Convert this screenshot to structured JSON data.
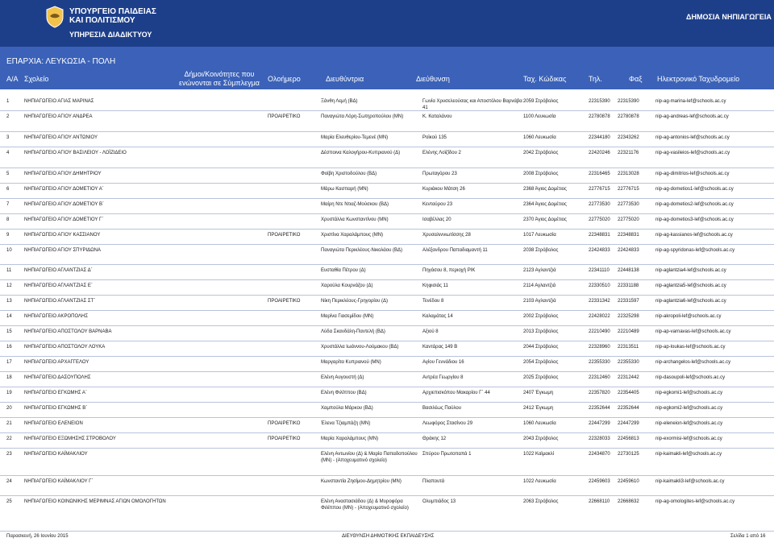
{
  "header": {
    "ministry_line1": "ΥΠΟΥΡΓΕΙΟ ΠΑΙΔΕΙΑΣ",
    "ministry_line2": "ΚΑΙ ΠΟΛΙΤΙΣΜΟΥ",
    "service": "ΥΠΗΡΕΣΙΑ ΔΙΑΔΙΚΤΥΟΥ",
    "title": "ΔΗΜΟΣΙΑ ΝΗΠΙΑΓΩΓΕΙΑ",
    "logo_icon": "coat-of-arms-icon"
  },
  "region": "ΕΠΑΡΧΙΑ: ΛΕΥΚΩΣΙΑ - ΠΟΛΗ",
  "columns": {
    "aa": "Α/Α",
    "school": "Σχολείο",
    "community": "Δήμοι/Κοινότητες που ενώνονται σε Σύμπλεγμα",
    "fullday": "Ολοήμερο",
    "director": "Διευθύντρια",
    "address": "Διεύθυνση",
    "postcode": "Ταχ. Κώδικας",
    "phone": "Τηλ.",
    "fax": "Φαξ",
    "email": "Ηλεκτρονικό Ταχυδρομείο"
  },
  "rows": [
    {
      "n": "1",
      "school": "ΝΗΠΙΑΓΩΓΕΙΟ ΑΓΙΑΣ ΜΑΡΙΝΑΣ",
      "opt": "",
      "dir": "Ξάνθη Λεμή (ΒΔ)",
      "addr": "Γωνία Χρυσελεούσας και Αποστόλου Βαρνάβα 41",
      "pc": "2059 Στρόβολος",
      "tel": "22315390",
      "fax": "22315390",
      "email": "nip-ag-marina-lef@schools.ac.cy"
    },
    {
      "n": "2",
      "school": "ΝΗΠΙΑΓΩΓΕΙΟ ΑΓΙΟΥ ΑΝΔΡΕΑ",
      "opt": "ΠΡΟΑΙΡΕΤΙΚΟ",
      "dir": "Παναγιώτα Λόρη-Σωτηροπούλου (ΜΝ)",
      "addr": "Κ. Καταλάνου",
      "pc": "1100 Λευκωσία",
      "tel": "22780878",
      "fax": "22780878",
      "email": "nip-ag-andreas-lef@schools.ac.cy"
    },
    {
      "n": "3",
      "school": "ΝΗΠΙΑΓΩΓΕΙΟ ΑΓΙΟΥ ΑΝΤΩΝΙΟΥ",
      "opt": "",
      "dir": "Μαρία Ελευθερίου-Τεμενέ (ΜΝ)",
      "addr": "Ροϊκού 135",
      "pc": "1060 Λευκωσία",
      "tel": "22344180",
      "fax": "22343262",
      "email": "nip-ag-antonios-lef@schools.ac.cy"
    },
    {
      "n": "4",
      "school": "ΝΗΠΙΑΓΩΓΕΙΟ ΑΓΙΟΥ ΒΑΣΙΛΕΙΟΥ - ΛΟΪΖΙΔΕΙΟ",
      "opt": "",
      "dir": "Δέσποινα Καλογήρου-Κυπριανού (Δ)",
      "addr": "Ελένης Λοϊζίδου 2",
      "pc": "2042 Στρόβολος",
      "tel": "22420246",
      "fax": "22321176",
      "email": "nip-ag-vasileios-lef@schools.ac.cy"
    },
    {
      "n": "5",
      "school": "ΝΗΠΙΑΓΩΓΕΙΟ ΑΓΙΟΥ ΔΗΜΗΤΡΙΟΥ",
      "opt": "",
      "dir": "Φοίβη Χριστοδούλου (ΒΔ)",
      "addr": "Πρωταγόρου 23",
      "pc": "2008 Στρόβολος",
      "tel": "22316465",
      "fax": "22313028",
      "email": "nip-ag-dimitrios-lef@schools.ac.cy"
    },
    {
      "n": "6",
      "school": "ΝΗΠΙΑΓΩΓΕΙΟ ΑΓΙΟΥ ΔΟΜΕΤΙΟΥ Α΄",
      "opt": "",
      "dir": "Μάρω Κασπαρή (ΜΝ)",
      "addr": "Κυριάκου Μάτση 26",
      "pc": "2368 Άγιος Δομέτιος",
      "tel": "22776715",
      "fax": "22776715",
      "email": "nip-ag-dometios1-lef@schools.ac.cy"
    },
    {
      "n": "7",
      "school": "ΝΗΠΙΑΓΩΓΕΙΟ ΑΓΙΟΥ ΔΟΜΕΤΙΟΥ Β΄",
      "opt": "",
      "dir": "Μαίρη Ντε Ντιαζ-Μούσκου (ΒΔ)",
      "addr": "Κενταύρου 23",
      "pc": "2364 Άγιος Δομέτιος",
      "tel": "22773530",
      "fax": "22773530",
      "email": "nip-ag-dometios2-lef@schools.ac.cy"
    },
    {
      "n": "8",
      "school": "ΝΗΠΙΑΓΩΓΕΙΟ ΑΓΙΟΥ ΔΟΜΕΤΙΟΥ Γ΄",
      "opt": "",
      "dir": "Χρυστάλλα Κωνσταντίνου (ΜΝ)",
      "addr": "Ισαβέλλας 20",
      "pc": "2370 Άγιος Δομέτιος",
      "tel": "22775020",
      "fax": "22775020",
      "email": "nip-ag-dometios3-lef@schools.ac.cy"
    },
    {
      "n": "9",
      "school": "ΝΗΠΙΑΓΩΓΕΙΟ ΑΓΙΟΥ ΚΑΣΣΙΑΝΟΥ",
      "opt": "ΠΡΟΑΙΡΕΤΙΚΟ",
      "dir": "Χριστίνα Χαραλάμπους (ΜΝ)",
      "addr": "Χρυσαλιννιωτίσσης 28",
      "pc": "1017 Λευκωσία",
      "tel": "22348831",
      "fax": "22348831",
      "email": "nip-ag-kassianos-lef@schools.ac.cy"
    },
    {
      "n": "10",
      "school": "ΝΗΠΙΑΓΩΓΕΙΟ ΑΓΙΟΥ ΣΠΥΡΙΔΩΝΑ",
      "opt": "",
      "dir": "Παναγιώτα Περικλέους-Νικολάου (ΒΔ)",
      "addr": "Αλέξανδρου Παπαδιαμαντή 11",
      "pc": "2038 Στρόβολος",
      "tel": "22424833",
      "fax": "22424833",
      "email": "nip-ag-spyridonas-lef@schools.ac.cy"
    },
    {
      "n": "11",
      "school": "ΝΗΠΙΑΓΩΓΕΙΟ ΑΓΛΑΝΤΖΙΑΣ Δ΄",
      "opt": "",
      "dir": "Ευσταθία Πέτρου (Δ)",
      "addr": "Πηγάσου 8, περιοχή ΡΙΚ",
      "pc": "2123 Αγλαντζιά",
      "tel": "22341110",
      "fax": "22448138",
      "email": "nip-aglantzia4-lef@schools.ac.cy"
    },
    {
      "n": "12",
      "school": "ΝΗΠΙΑΓΩΓΕΙΟ ΑΓΛΑΝΤΖΙΑΣ Ε΄",
      "opt": "",
      "dir": "Χαρούλα Κουρνάζου (Δ)",
      "addr": "Κηφισιάς 11",
      "pc": "2114 Αγλαντζιά",
      "tel": "22330510",
      "fax": "22331188",
      "email": "nip-aglantzia5-lef@schools.ac.cy"
    },
    {
      "n": "13",
      "school": "ΝΗΠΙΑΓΩΓΕΙΟ ΑΓΛΑΝΤΖΙΑΣ ΣΤ΄",
      "opt": "ΠΡΟΑΙΡΕΤΙΚΟ",
      "dir": "Νίκη Περικλέους-Γρηγορίου (Δ)",
      "addr": "Τενέδου 8",
      "pc": "2103 Αγλαντζιά",
      "tel": "22331342",
      "fax": "22331597",
      "email": "nip-aglantzia6-lef@schools.ac.cy"
    },
    {
      "n": "14",
      "school": "ΝΗΠΙΑΓΩΓΕΙΟ ΑΚΡΟΠΟΛΗΣ",
      "opt": "",
      "dir": "Μαρίνα Γιασεμίδου (ΜΝ)",
      "addr": "Καλαμάτας 14",
      "pc": "2002 Στρόβολος",
      "tel": "22428022",
      "fax": "22325298",
      "email": "nip-akropoli-lef@schools.ac.cy"
    },
    {
      "n": "15",
      "school": "ΝΗΠΙΑΓΩΓΕΙΟ ΑΠΟΣΤΟΛΟΥ ΒΑΡΝΑΒΑ",
      "opt": "",
      "dir": "Λύδα Σκανδάλη-Παντελή (ΒΔ)",
      "addr": "Αξιού 8",
      "pc": "2013 Στρόβολος",
      "tel": "22210490",
      "fax": "22210489",
      "email": "nip-ap-varnavas-lef@schools.ac.cy"
    },
    {
      "n": "16",
      "school": "ΝΗΠΙΑΓΩΓΕΙΟ ΑΠΟΣΤΟΛΟΥ ΛΟΥΚΑ",
      "opt": "",
      "dir": "Χρυστάλλα Ιωάννου-Λούμακου (ΒΔ)",
      "addr": "Καντάρας 149 Β",
      "pc": "2044 Στρόβολος",
      "tel": "22328960",
      "fax": "22313511",
      "email": "nip-ap-loukas-lef@schools.ac.cy"
    },
    {
      "n": "17",
      "school": "ΝΗΠΙΑΓΩΓΕΙΟ ΑΡΧΑΓΓΕΛΟΥ",
      "opt": "",
      "dir": "Μαργαρίτα Κυπριανού (ΜΝ)",
      "addr": "Αγίου Γεννάδιου 16",
      "pc": "2054 Στρόβολος",
      "tel": "22355330",
      "fax": "22355330",
      "email": "nip-archangelos-lef@schools.ac.cy"
    },
    {
      "n": "18",
      "school": "ΝΗΠΙΑΓΩΓΕΙΟ ΔΑΣΟΥΠΟΛΗΣ",
      "opt": "",
      "dir": "Ελένη Αυγουστή (Δ)",
      "addr": "Αντρέα Γεωργίου 8",
      "pc": "2025 Στρόβολος",
      "tel": "22312460",
      "fax": "22312442",
      "email": "nip-dasoupoli-lef@schools.ac.cy"
    },
    {
      "n": "19",
      "school": "ΝΗΠΙΑΓΩΓΕΙΟ ΕΓΚΩΜΗΣ Α΄",
      "opt": "",
      "dir": "Ελένη Φιλίππου (ΒΔ)",
      "addr": "Αρχιεπισκόπου Μακαρίου Γ΄ 44",
      "pc": "2407 Έγκωμη",
      "tel": "22357820",
      "fax": "22354405",
      "email": "nip-egkomi1-lef@schools.ac.cy"
    },
    {
      "n": "20",
      "school": "ΝΗΠΙΑΓΩΓΕΙΟ ΕΓΚΩΜΗΣ Β΄",
      "opt": "",
      "dir": "Χαμπούλα Μάρκου (ΒΔ)",
      "addr": "Βασιλέως Παύλου",
      "pc": "2412 Έγκωμη",
      "tel": "22352644",
      "fax": "22352644",
      "email": "nip-egkomi2-lef@schools.ac.cy"
    },
    {
      "n": "21",
      "school": "ΝΗΠΙΑΓΩΓΕΙΟ ΕΛΕΝΕΙΟΝ",
      "opt": "ΠΡΟΑΙΡΕΤΙΚΟ",
      "dir": "Έλενα Τζιαμπάζη (ΜΝ)",
      "addr": "Λεωφόρος Στασίνου 29",
      "pc": "1060 Λευκωσία",
      "tel": "22447299",
      "fax": "22447299",
      "email": "nip-eleneion-lef@schools.ac.cy"
    },
    {
      "n": "22",
      "school": "ΝΗΠΙΑΓΩΓΕΙΟ ΕΞΩΜΗΣΗΣ ΣΤΡΟΒΟΛΟΥ",
      "opt": "ΠΡΟΑΙΡΕΤΙΚΟ",
      "dir": "Μαρία Χαραλάμπους (ΜΝ)",
      "addr": "Θράκης 12",
      "pc": "2043 Στρόβολος",
      "tel": "22328033",
      "fax": "22456813",
      "email": "nip-exormisi-lef@schools.ac.cy"
    },
    {
      "n": "23",
      "school": "ΝΗΠΙΑΓΩΓΕΙΟ ΚΑΪΜΑΚΛΙΟΥ",
      "opt": "",
      "dir": "Ελένη Αντωνίου (Δ) & Μαρία Παπαδοπούλου (ΜΝ) - (Αποχευματινό σχολείο)",
      "addr": "Σπύρου Πρωτοπαπά 1",
      "pc": "1022 Καϊμακλί",
      "tel": "22434870",
      "fax": "22730125",
      "email": "nip-kaimakli-lef@schools.ac.cy"
    },
    {
      "n": "24",
      "school": "ΝΗΠΙΑΓΩΓΕΙΟ ΚΑΪΜΑΚΛΙΟΥ Γ΄",
      "opt": "",
      "dir": "Κωνσταντία Ζησίμου-Δημητρίου (ΜΝ)",
      "addr": "Πλαπουτά",
      "pc": "1022 Λευκωσία",
      "tel": "22459603",
      "fax": "22459610",
      "email": "nip-kaimakli3-lef@schools.ac.cy"
    },
    {
      "n": "25",
      "school": "ΝΗΠΙΑΓΩΓΕΙΟ ΚΟΙΝΩΝΙΚΗΣ ΜΕΡΙΜΝΑΣ ΑΓΙΩΝ ΟΜΟΛΟΓΗΤΩΝ",
      "opt": "",
      "dir": "Ελένη Αναστασιάδου (Δ) & Μυροφόρα Φιλίππου (ΜΝ) - (Αποχευματινό σχολείο)",
      "addr": "Ολυμπιάδος 13",
      "pc": "2063 Στρόβολος",
      "tel": "22668110",
      "fax": "22668632",
      "email": "nip-ag-omologites-lef@schools.ac.cy"
    }
  ],
  "footer": {
    "date": "Παρασκευή, 26 Ιουνίου 2015",
    "dept": "ΔΙΕΥΘΥΝΣΗ ΔΗΜΟΤΙΚΗΣ ΕΚΠΑΙΔΕΥΣΗΣ",
    "page": "Σελίδα 1 από 16"
  },
  "colors": {
    "header_bg": "#1d3f8a",
    "band_bg": "#3b62b8",
    "row_rule": "#b8c3dc"
  }
}
